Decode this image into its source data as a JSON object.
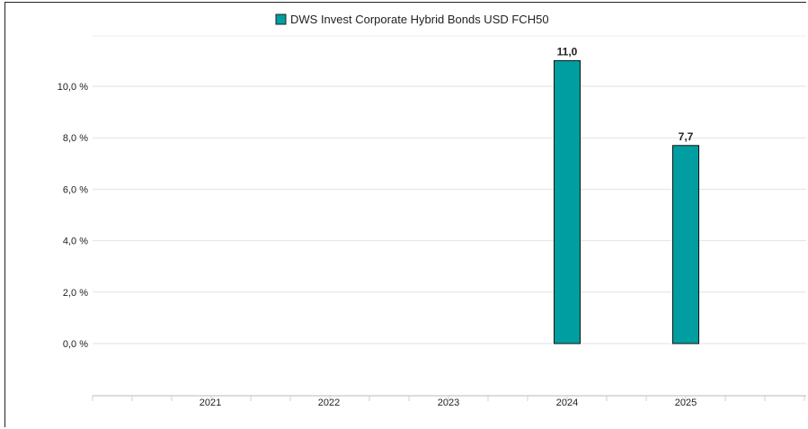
{
  "chart_data": {
    "type": "bar",
    "categories": [
      "2021",
      "2022",
      "2023",
      "2024",
      "2025"
    ],
    "series": [
      {
        "name": "DWS Invest Corporate Hybrid Bonds USD FCH50",
        "values": [
          null,
          null,
          null,
          11.0,
          7.7
        ],
        "data_labels": [
          "",
          "",
          "",
          "11,0",
          "7,7"
        ],
        "color": "#009ea0"
      }
    ],
    "y_ticks": [
      0,
      2,
      4,
      6,
      8,
      10
    ],
    "y_tick_labels": [
      "0,0 %",
      "2,0 %",
      "4,0 %",
      "6,0 %",
      "8,0 %",
      "10,0 %"
    ],
    "ylim": [
      0,
      12
    ],
    "grid": true,
    "legend_position": "top-center"
  }
}
